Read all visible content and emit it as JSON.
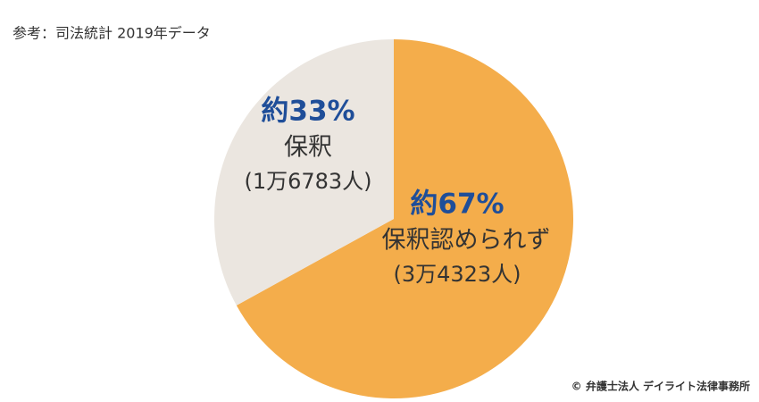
{
  "chart_data": {
    "type": "pie",
    "source_note": "参考：司法統計 2019年データ",
    "credit": "© 弁護士法人 デイライト法律事務所",
    "categories": [
      "保釈認められず",
      "保釈"
    ],
    "values": [
      67,
      33
    ],
    "value_labels": [
      "約67%",
      "約33%"
    ],
    "count_labels": [
      "(3万4323人)",
      "(1万6783人)"
    ],
    "colors": [
      "#f4ad4b",
      "#ebe6e0"
    ],
    "label_color": "#1f4e99"
  }
}
